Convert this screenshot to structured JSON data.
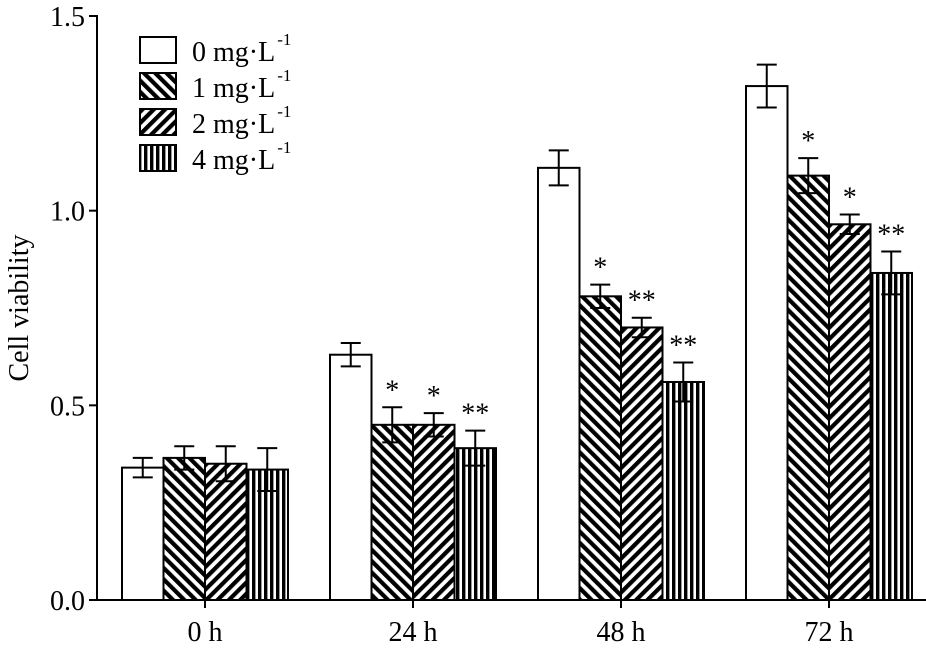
{
  "chart_data": {
    "type": "bar",
    "title": "",
    "xlabel": "",
    "ylabel": "Cell viability",
    "ylim": [
      0.0,
      1.5
    ],
    "yticks": [
      "0.0",
      "0.5",
      "1.0",
      "1.5"
    ],
    "ytick_values": [
      0.0,
      0.5,
      1.0,
      1.5
    ],
    "grid": false,
    "legend_position": "top-left",
    "categories": [
      "0 h",
      "24 h",
      "48 h",
      "72 h"
    ],
    "series": [
      {
        "name": "0 mg·L",
        "unit_sup": "-1",
        "pattern": "none",
        "values": [
          0.34,
          0.63,
          1.11,
          1.32
        ],
        "errors": [
          0.025,
          0.03,
          0.045,
          0.055
        ],
        "significance": [
          "",
          "",
          "",
          ""
        ]
      },
      {
        "name": "1 mg·L",
        "unit_sup": "-1",
        "pattern": "backslash",
        "values": [
          0.365,
          0.45,
          0.78,
          1.09
        ],
        "errors": [
          0.03,
          0.045,
          0.03,
          0.045
        ],
        "significance": [
          "",
          "*",
          "*",
          "*"
        ]
      },
      {
        "name": "2 mg·L",
        "unit_sup": "-1",
        "pattern": "slash",
        "values": [
          0.35,
          0.45,
          0.7,
          0.965
        ],
        "errors": [
          0.045,
          0.03,
          0.025,
          0.025
        ],
        "significance": [
          "",
          "*",
          "**",
          "*"
        ]
      },
      {
        "name": "4 mg·L",
        "unit_sup": "-1",
        "pattern": "vertical",
        "values": [
          0.335,
          0.39,
          0.56,
          0.84
        ],
        "errors": [
          0.055,
          0.045,
          0.05,
          0.055
        ],
        "significance": [
          "",
          "**",
          "**",
          "**"
        ]
      }
    ]
  }
}
